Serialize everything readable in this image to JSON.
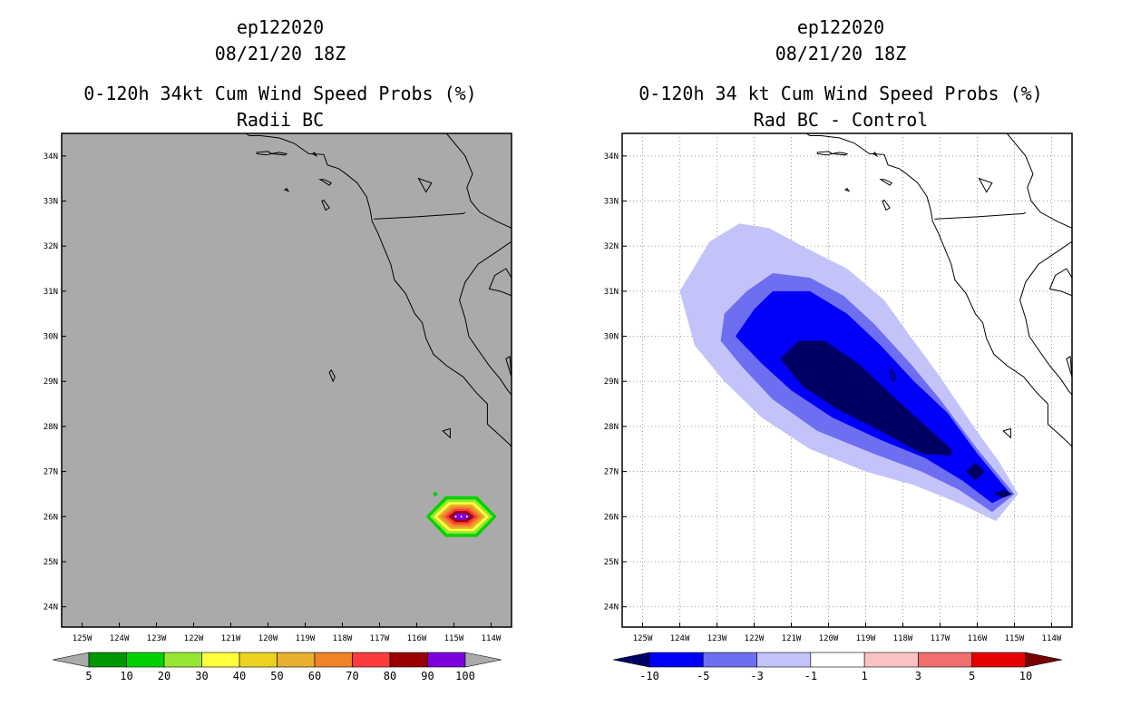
{
  "panels": [
    {
      "storm": "ep122020",
      "datetime": "08/21/20 18Z",
      "title": "0-120h 34kt Cum Wind Speed Probs (%)",
      "subtitle": "Radii BC",
      "background": "#aaaaaa",
      "grid": false,
      "colorbar": {
        "labels": [
          "5",
          "10",
          "20",
          "30",
          "40",
          "50",
          "60",
          "70",
          "80",
          "90",
          "100"
        ],
        "colors": [
          "#009600",
          "#00d200",
          "#96e632",
          "#ffff3c",
          "#ebd21e",
          "#e6af2d",
          "#f08228",
          "#fa3c3c",
          "#9b0000",
          "#7d00dc"
        ],
        "under_color": "#aaaaaa",
        "over_color": "#aaaaaa"
      }
    },
    {
      "storm": "ep122020",
      "datetime": "08/21/20 18Z",
      "title": "0-120h 34 kt Cum Wind Speed Probs (%)",
      "subtitle": "Rad BC - Control",
      "background": "#ffffff",
      "grid": true,
      "colorbar": {
        "labels": [
          "-10",
          "-5",
          "-3",
          "-1",
          "1",
          "3",
          "5",
          "10"
        ],
        "colors": [
          "#0000fa",
          "#6e6ef0",
          "#c3c3fa",
          "#ffffff",
          "#fac3c3",
          "#f06e6e",
          "#e60000"
        ],
        "under_color": "#000064",
        "over_color": "#780000"
      }
    }
  ],
  "axes": {
    "lon_labels": [
      "125W",
      "124W",
      "123W",
      "122W",
      "121W",
      "120W",
      "119W",
      "118W",
      "117W",
      "116W",
      "115W",
      "114W"
    ],
    "lat_labels": [
      "24N",
      "25N",
      "26N",
      "27N",
      "28N",
      "29N",
      "30N",
      "31N",
      "32N",
      "33N",
      "34N"
    ],
    "lon_range": [
      -125.55,
      -113.45
    ],
    "lat_range": [
      23.55,
      34.5
    ]
  }
}
